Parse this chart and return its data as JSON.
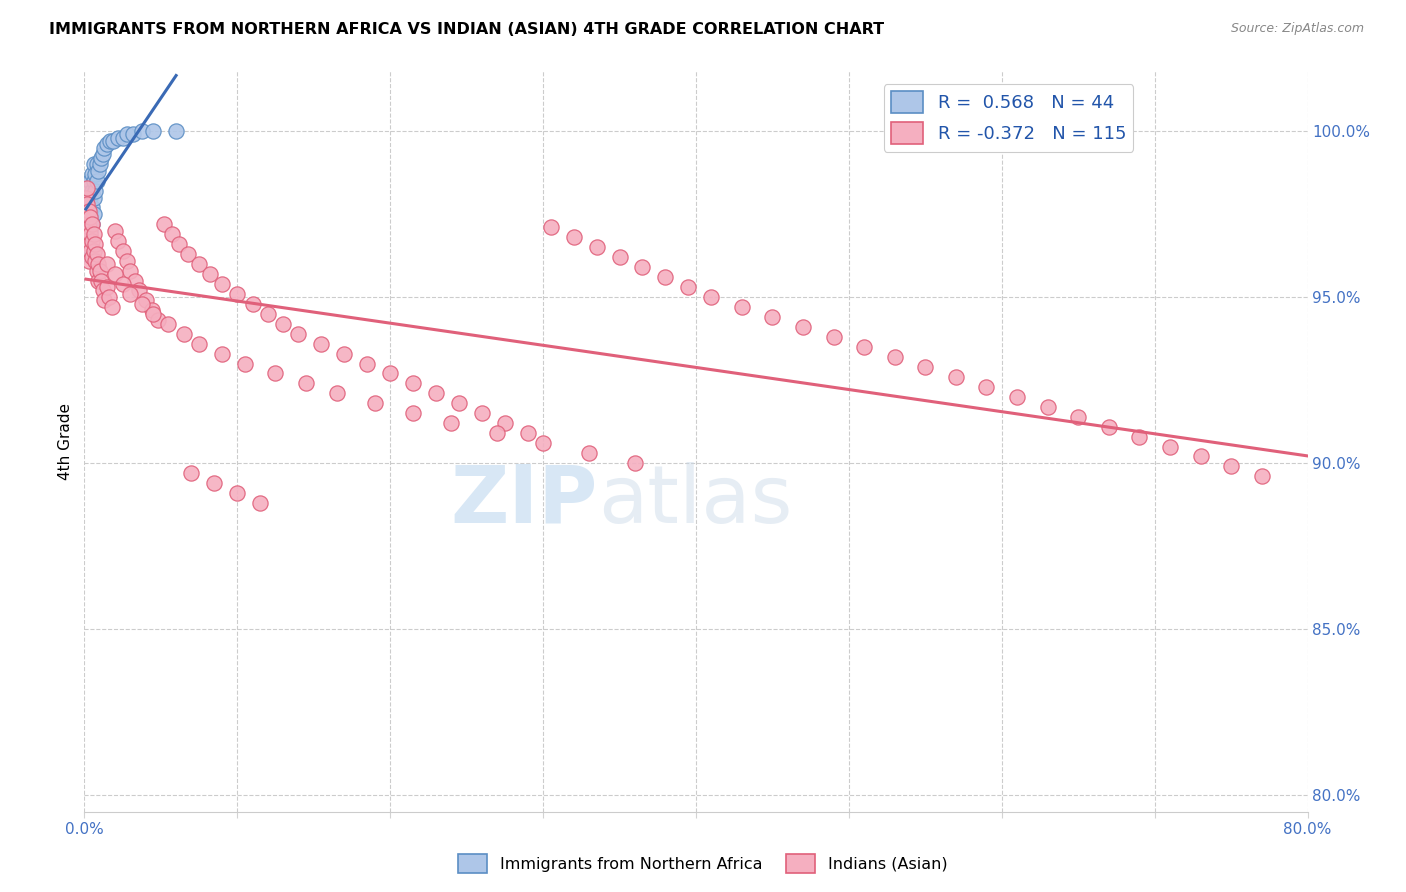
{
  "title": "IMMIGRANTS FROM NORTHERN AFRICA VS INDIAN (ASIAN) 4TH GRADE CORRELATION CHART",
  "source": "Source: ZipAtlas.com",
  "ylabel": "4th Grade",
  "xlim": [
    0.0,
    0.8
  ],
  "ylim": [
    0.795,
    1.018
  ],
  "xtick_positions": [
    0.0,
    0.1,
    0.2,
    0.3,
    0.4,
    0.5,
    0.6,
    0.7,
    0.8
  ],
  "xticklabels": [
    "0.0%",
    "",
    "",
    "",
    "",
    "",
    "",
    "",
    "80.0%"
  ],
  "ytick_positions": [
    0.8,
    0.85,
    0.9,
    0.95,
    1.0
  ],
  "yticklabels_right": [
    "80.0%",
    "85.0%",
    "90.0%",
    "95.0%",
    "100.0%"
  ],
  "blue_R": 0.568,
  "blue_N": 44,
  "pink_R": -0.372,
  "pink_N": 115,
  "blue_color": "#aec6e8",
  "pink_color": "#f5afc0",
  "blue_edge_color": "#5b8ec4",
  "pink_edge_color": "#e0607a",
  "blue_line_color": "#3a6ab5",
  "pink_line_color": "#e0607a",
  "legend_label_blue": "Immigrants from Northern Africa",
  "legend_label_pink": "Indians (Asian)",
  "blue_scatter_x": [
    0.001,
    0.001,
    0.001,
    0.002,
    0.002,
    0.002,
    0.002,
    0.003,
    0.003,
    0.003,
    0.003,
    0.003,
    0.004,
    0.004,
    0.004,
    0.004,
    0.004,
    0.005,
    0.005,
    0.005,
    0.005,
    0.006,
    0.006,
    0.006,
    0.006,
    0.007,
    0.007,
    0.008,
    0.008,
    0.009,
    0.01,
    0.011,
    0.012,
    0.013,
    0.015,
    0.017,
    0.019,
    0.022,
    0.025,
    0.028,
    0.032,
    0.038,
    0.045,
    0.06
  ],
  "blue_scatter_y": [
    0.965,
    0.97,
    0.975,
    0.963,
    0.968,
    0.973,
    0.978,
    0.965,
    0.97,
    0.975,
    0.98,
    0.968,
    0.97,
    0.975,
    0.98,
    0.985,
    0.968,
    0.972,
    0.977,
    0.982,
    0.987,
    0.975,
    0.98,
    0.985,
    0.99,
    0.982,
    0.987,
    0.985,
    0.99,
    0.988,
    0.99,
    0.992,
    0.993,
    0.995,
    0.996,
    0.997,
    0.997,
    0.998,
    0.998,
    0.999,
    0.999,
    1.0,
    1.0,
    1.0
  ],
  "pink_scatter_x": [
    0.001,
    0.001,
    0.001,
    0.002,
    0.002,
    0.002,
    0.002,
    0.003,
    0.003,
    0.003,
    0.003,
    0.004,
    0.004,
    0.004,
    0.005,
    0.005,
    0.005,
    0.006,
    0.006,
    0.007,
    0.007,
    0.008,
    0.008,
    0.009,
    0.009,
    0.01,
    0.011,
    0.012,
    0.013,
    0.015,
    0.016,
    0.018,
    0.02,
    0.022,
    0.025,
    0.028,
    0.03,
    0.033,
    0.036,
    0.04,
    0.044,
    0.048,
    0.052,
    0.057,
    0.062,
    0.068,
    0.075,
    0.082,
    0.09,
    0.1,
    0.11,
    0.12,
    0.13,
    0.14,
    0.155,
    0.17,
    0.185,
    0.2,
    0.215,
    0.23,
    0.245,
    0.26,
    0.275,
    0.29,
    0.305,
    0.32,
    0.335,
    0.35,
    0.365,
    0.38,
    0.395,
    0.41,
    0.43,
    0.45,
    0.47,
    0.49,
    0.51,
    0.53,
    0.55,
    0.57,
    0.59,
    0.61,
    0.63,
    0.65,
    0.67,
    0.69,
    0.71,
    0.73,
    0.75,
    0.77,
    0.015,
    0.02,
    0.025,
    0.03,
    0.038,
    0.045,
    0.055,
    0.065,
    0.075,
    0.09,
    0.105,
    0.125,
    0.145,
    0.165,
    0.19,
    0.215,
    0.24,
    0.27,
    0.3,
    0.33,
    0.36,
    0.07,
    0.085,
    0.1,
    0.115
  ],
  "pink_scatter_y": [
    0.98,
    0.975,
    0.97,
    0.983,
    0.978,
    0.973,
    0.968,
    0.976,
    0.971,
    0.966,
    0.961,
    0.974,
    0.969,
    0.964,
    0.972,
    0.967,
    0.962,
    0.969,
    0.964,
    0.966,
    0.961,
    0.963,
    0.958,
    0.96,
    0.955,
    0.958,
    0.955,
    0.952,
    0.949,
    0.953,
    0.95,
    0.947,
    0.97,
    0.967,
    0.964,
    0.961,
    0.958,
    0.955,
    0.952,
    0.949,
    0.946,
    0.943,
    0.972,
    0.969,
    0.966,
    0.963,
    0.96,
    0.957,
    0.954,
    0.951,
    0.948,
    0.945,
    0.942,
    0.939,
    0.936,
    0.933,
    0.93,
    0.927,
    0.924,
    0.921,
    0.918,
    0.915,
    0.912,
    0.909,
    0.971,
    0.968,
    0.965,
    0.962,
    0.959,
    0.956,
    0.953,
    0.95,
    0.947,
    0.944,
    0.941,
    0.938,
    0.935,
    0.932,
    0.929,
    0.926,
    0.923,
    0.92,
    0.917,
    0.914,
    0.911,
    0.908,
    0.905,
    0.902,
    0.899,
    0.896,
    0.96,
    0.957,
    0.954,
    0.951,
    0.948,
    0.945,
    0.942,
    0.939,
    0.936,
    0.933,
    0.93,
    0.927,
    0.924,
    0.921,
    0.918,
    0.915,
    0.912,
    0.909,
    0.906,
    0.903,
    0.9,
    0.897,
    0.894,
    0.891,
    0.888
  ]
}
